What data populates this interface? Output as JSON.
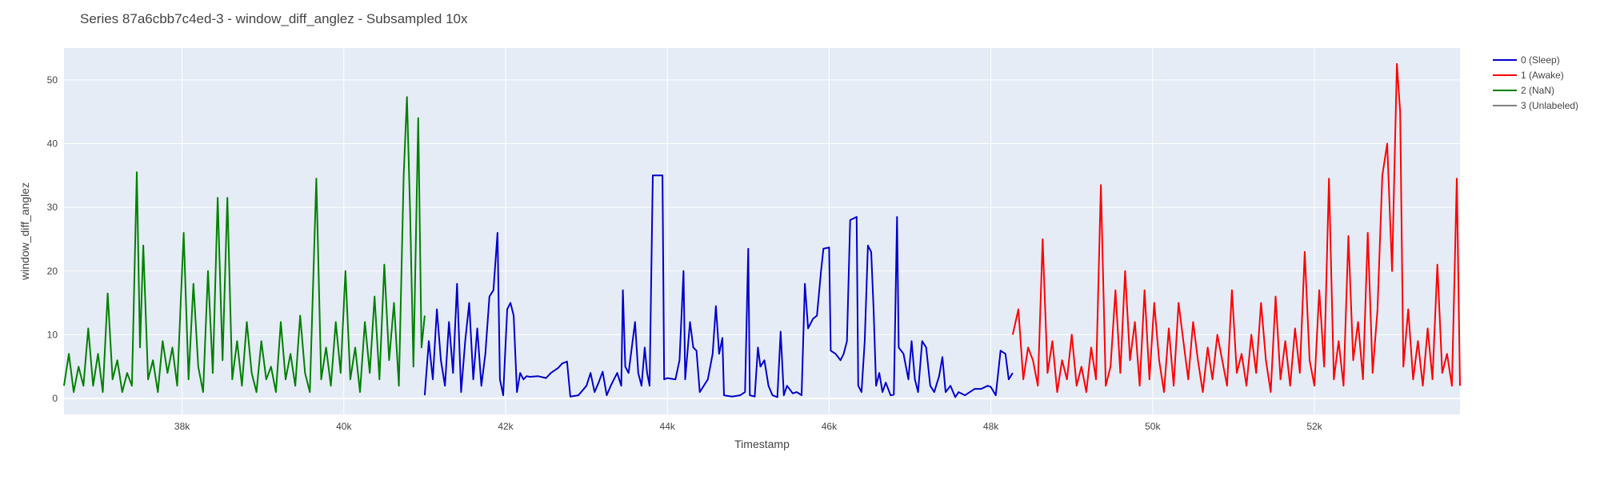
{
  "chart_data": {
    "type": "line",
    "title": "Series 87a6cbb7c4ed-3 - window_diff_anglez - Subsampled 10x",
    "xlabel": "Timestamp",
    "ylabel": "window_diff_anglez",
    "xlim": [
      36540,
      53800
    ],
    "ylim": [
      -2.5,
      55
    ],
    "x_ticks": [
      38000,
      40000,
      42000,
      44000,
      46000,
      48000,
      50000,
      52000
    ],
    "x_tick_labels": [
      "38k",
      "40k",
      "42k",
      "44k",
      "46k",
      "48k",
      "50k",
      "52k"
    ],
    "y_ticks": [
      0,
      10,
      20,
      30,
      40,
      50
    ],
    "y_tick_labels": [
      "0",
      "10",
      "20",
      "30",
      "40",
      "50"
    ],
    "grid": true,
    "legend_position": "top-right",
    "series": [
      {
        "name": "0 (Sleep)",
        "color": "#0000cc",
        "points": [
          [
            41000,
            0.5
          ],
          [
            41050,
            9
          ],
          [
            41100,
            3
          ],
          [
            41150,
            14
          ],
          [
            41200,
            6
          ],
          [
            41250,
            2
          ],
          [
            41300,
            12
          ],
          [
            41350,
            4
          ],
          [
            41400,
            18
          ],
          [
            41450,
            1
          ],
          [
            41500,
            9
          ],
          [
            41550,
            15
          ],
          [
            41600,
            3
          ],
          [
            41650,
            11
          ],
          [
            41700,
            2
          ],
          [
            41750,
            7
          ],
          [
            41800,
            16
          ],
          [
            41850,
            17
          ],
          [
            41900,
            26
          ],
          [
            41930,
            3
          ],
          [
            41970,
            0.5
          ],
          [
            42020,
            14
          ],
          [
            42060,
            15
          ],
          [
            42100,
            13
          ],
          [
            42140,
            1
          ],
          [
            42180,
            4
          ],
          [
            42220,
            3
          ],
          [
            42260,
            3.5
          ],
          [
            42300,
            3.4
          ],
          [
            42400,
            3.5
          ],
          [
            42500,
            3.2
          ],
          [
            42560,
            4
          ],
          [
            42650,
            4.8
          ],
          [
            42700,
            5.5
          ],
          [
            42760,
            5.8
          ],
          [
            42800,
            0.3
          ],
          [
            42900,
            0.5
          ],
          [
            43000,
            2
          ],
          [
            43050,
            4
          ],
          [
            43100,
            1
          ],
          [
            43150,
            2.5
          ],
          [
            43200,
            4.2
          ],
          [
            43250,
            0.5
          ],
          [
            43300,
            2
          ],
          [
            43380,
            4
          ],
          [
            43430,
            2
          ],
          [
            43450,
            17
          ],
          [
            43480,
            5
          ],
          [
            43520,
            4
          ],
          [
            43600,
            12
          ],
          [
            43640,
            4
          ],
          [
            43680,
            2
          ],
          [
            43720,
            8
          ],
          [
            43750,
            4
          ],
          [
            43780,
            2
          ],
          [
            43820,
            35
          ],
          [
            43940,
            35
          ],
          [
            43960,
            3
          ],
          [
            44000,
            3.2
          ],
          [
            44100,
            3
          ],
          [
            44150,
            6
          ],
          [
            44200,
            20
          ],
          [
            44220,
            3
          ],
          [
            44280,
            12
          ],
          [
            44320,
            8
          ],
          [
            44360,
            7.5
          ],
          [
            44400,
            1
          ],
          [
            44500,
            3
          ],
          [
            44560,
            7
          ],
          [
            44600,
            14.5
          ],
          [
            44640,
            7
          ],
          [
            44680,
            9.5
          ],
          [
            44700,
            0.5
          ],
          [
            44800,
            0.3
          ],
          [
            44900,
            0.5
          ],
          [
            44960,
            1
          ],
          [
            45000,
            23.5
          ],
          [
            45020,
            0.5
          ],
          [
            45080,
            0.3
          ],
          [
            45120,
            8
          ],
          [
            45150,
            5
          ],
          [
            45200,
            6
          ],
          [
            45250,
            2
          ],
          [
            45300,
            0.5
          ],
          [
            45360,
            0.2
          ],
          [
            45400,
            10.5
          ],
          [
            45440,
            0.5
          ],
          [
            45480,
            2
          ],
          [
            45550,
            0.8
          ],
          [
            45600,
            1
          ],
          [
            45660,
            0.5
          ],
          [
            45700,
            18
          ],
          [
            45740,
            11
          ],
          [
            45800,
            12.5
          ],
          [
            45850,
            13
          ],
          [
            45900,
            20
          ],
          [
            45930,
            23.5
          ],
          [
            46000,
            23.7
          ],
          [
            46020,
            7.5
          ],
          [
            46080,
            7
          ],
          [
            46140,
            6
          ],
          [
            46180,
            7
          ],
          [
            46220,
            9
          ],
          [
            46260,
            28
          ],
          [
            46340,
            28.5
          ],
          [
            46360,
            2
          ],
          [
            46400,
            1
          ],
          [
            46440,
            9
          ],
          [
            46480,
            24
          ],
          [
            46520,
            23
          ],
          [
            46550,
            14
          ],
          [
            46580,
            2
          ],
          [
            46620,
            4
          ],
          [
            46660,
            1
          ],
          [
            46700,
            2.5
          ],
          [
            46760,
            0.5
          ],
          [
            46800,
            0.6
          ],
          [
            46840,
            28.5
          ],
          [
            46860,
            8
          ],
          [
            46920,
            7
          ],
          [
            46980,
            3
          ],
          [
            47020,
            9
          ],
          [
            47060,
            3
          ],
          [
            47100,
            1
          ],
          [
            47150,
            9
          ],
          [
            47200,
            8
          ],
          [
            47250,
            2
          ],
          [
            47300,
            1
          ],
          [
            47360,
            3.5
          ],
          [
            47400,
            6.5
          ],
          [
            47440,
            1
          ],
          [
            47500,
            2
          ],
          [
            47560,
            0.2
          ],
          [
            47600,
            1
          ],
          [
            47680,
            0.5
          ],
          [
            47740,
            1
          ],
          [
            47800,
            1.5
          ],
          [
            47880,
            1.5
          ],
          [
            47960,
            2
          ],
          [
            48000,
            1.8
          ],
          [
            48060,
            0.5
          ],
          [
            48120,
            7.5
          ],
          [
            48180,
            7
          ],
          [
            48220,
            3
          ],
          [
            48270,
            4
          ]
        ]
      },
      {
        "name": "1 (Awake)",
        "color": "#ff0000",
        "points": [
          [
            48270,
            10
          ],
          [
            48340,
            14
          ],
          [
            48400,
            3
          ],
          [
            48460,
            8
          ],
          [
            48520,
            6
          ],
          [
            48580,
            2
          ],
          [
            48640,
            25
          ],
          [
            48700,
            4
          ],
          [
            48760,
            9
          ],
          [
            48820,
            1
          ],
          [
            48880,
            6
          ],
          [
            48940,
            3
          ],
          [
            49000,
            10
          ],
          [
            49060,
            2
          ],
          [
            49120,
            5
          ],
          [
            49180,
            1
          ],
          [
            49240,
            8
          ],
          [
            49300,
            3
          ],
          [
            49360,
            33.5
          ],
          [
            49420,
            2
          ],
          [
            49480,
            5
          ],
          [
            49540,
            17
          ],
          [
            49600,
            4
          ],
          [
            49660,
            20
          ],
          [
            49720,
            6
          ],
          [
            49780,
            12
          ],
          [
            49840,
            2
          ],
          [
            49900,
            17
          ],
          [
            49960,
            3
          ],
          [
            50020,
            15
          ],
          [
            50080,
            6
          ],
          [
            50140,
            1
          ],
          [
            50200,
            11
          ],
          [
            50260,
            2
          ],
          [
            50320,
            15
          ],
          [
            50380,
            9
          ],
          [
            50440,
            3
          ],
          [
            50500,
            12
          ],
          [
            50560,
            6
          ],
          [
            50620,
            1
          ],
          [
            50680,
            8
          ],
          [
            50740,
            3
          ],
          [
            50800,
            10
          ],
          [
            50860,
            6
          ],
          [
            50920,
            2
          ],
          [
            50980,
            17
          ],
          [
            51040,
            4
          ],
          [
            51100,
            7
          ],
          [
            51160,
            2
          ],
          [
            51220,
            10
          ],
          [
            51280,
            4
          ],
          [
            51340,
            15
          ],
          [
            51400,
            6
          ],
          [
            51460,
            1
          ],
          [
            51520,
            16
          ],
          [
            51580,
            3
          ],
          [
            51640,
            9
          ],
          [
            51700,
            2
          ],
          [
            51760,
            11
          ],
          [
            51820,
            4
          ],
          [
            51880,
            23
          ],
          [
            51940,
            6
          ],
          [
            52000,
            2
          ],
          [
            52060,
            17
          ],
          [
            52120,
            5
          ],
          [
            52180,
            34.5
          ],
          [
            52240,
            3
          ],
          [
            52300,
            9
          ],
          [
            52360,
            2
          ],
          [
            52420,
            25.5
          ],
          [
            52480,
            6
          ],
          [
            52540,
            12
          ],
          [
            52600,
            3
          ],
          [
            52660,
            26
          ],
          [
            52720,
            4
          ],
          [
            52780,
            14
          ],
          [
            52840,
            35
          ],
          [
            52900,
            40
          ],
          [
            52960,
            20
          ],
          [
            53020,
            52.5
          ],
          [
            53060,
            45
          ],
          [
            53100,
            5
          ],
          [
            53160,
            14
          ],
          [
            53220,
            3
          ],
          [
            53280,
            9
          ],
          [
            53340,
            2
          ],
          [
            53400,
            11
          ],
          [
            53460,
            3
          ],
          [
            53520,
            21
          ],
          [
            53580,
            4
          ],
          [
            53640,
            7
          ],
          [
            53700,
            2
          ],
          [
            53760,
            34.5
          ],
          [
            53800,
            2
          ]
        ]
      },
      {
        "name": "2 (NaN)",
        "color": "#008000",
        "points": [
          [
            36540,
            2
          ],
          [
            36600,
            7
          ],
          [
            36660,
            1
          ],
          [
            36720,
            5
          ],
          [
            36780,
            2
          ],
          [
            36840,
            11
          ],
          [
            36900,
            2
          ],
          [
            36960,
            7
          ],
          [
            37020,
            1
          ],
          [
            37080,
            16.5
          ],
          [
            37140,
            3
          ],
          [
            37200,
            6
          ],
          [
            37260,
            1
          ],
          [
            37320,
            4
          ],
          [
            37380,
            2
          ],
          [
            37440,
            35.5
          ],
          [
            37480,
            8
          ],
          [
            37520,
            24
          ],
          [
            37580,
            3
          ],
          [
            37640,
            6
          ],
          [
            37700,
            1
          ],
          [
            37760,
            9
          ],
          [
            37820,
            4
          ],
          [
            37880,
            8
          ],
          [
            37940,
            2
          ],
          [
            38020,
            26
          ],
          [
            38080,
            3
          ],
          [
            38140,
            18
          ],
          [
            38200,
            5
          ],
          [
            38260,
            1
          ],
          [
            38320,
            20
          ],
          [
            38380,
            4
          ],
          [
            38440,
            31.5
          ],
          [
            38500,
            6
          ],
          [
            38560,
            31.5
          ],
          [
            38620,
            3
          ],
          [
            38680,
            9
          ],
          [
            38740,
            2
          ],
          [
            38800,
            12
          ],
          [
            38860,
            4
          ],
          [
            38920,
            1
          ],
          [
            38980,
            9
          ],
          [
            39040,
            3
          ],
          [
            39100,
            5
          ],
          [
            39160,
            1
          ],
          [
            39220,
            12
          ],
          [
            39280,
            3
          ],
          [
            39340,
            7
          ],
          [
            39400,
            2
          ],
          [
            39460,
            13
          ],
          [
            39520,
            4
          ],
          [
            39580,
            1
          ],
          [
            39660,
            34.5
          ],
          [
            39720,
            3
          ],
          [
            39780,
            8
          ],
          [
            39840,
            2
          ],
          [
            39900,
            12
          ],
          [
            39960,
            4
          ],
          [
            40020,
            20
          ],
          [
            40080,
            3
          ],
          [
            40140,
            8
          ],
          [
            40200,
            1
          ],
          [
            40260,
            12
          ],
          [
            40320,
            4
          ],
          [
            40380,
            16
          ],
          [
            40440,
            3
          ],
          [
            40500,
            21
          ],
          [
            40560,
            6
          ],
          [
            40620,
            15
          ],
          [
            40680,
            2
          ],
          [
            40740,
            35
          ],
          [
            40780,
            47.3
          ],
          [
            40820,
            29
          ],
          [
            40860,
            5
          ],
          [
            40920,
            44
          ],
          [
            40960,
            8
          ],
          [
            41000,
            13
          ]
        ]
      },
      {
        "name": "3 (Unlabeled)",
        "color": "#808080",
        "points": []
      }
    ]
  }
}
